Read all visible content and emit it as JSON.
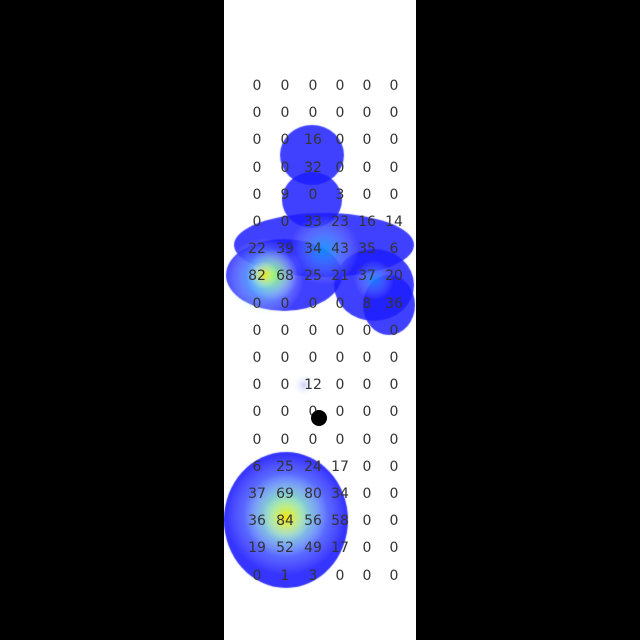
{
  "grid": {
    "rows": [
      [
        0,
        0,
        0,
        0,
        0,
        0
      ],
      [
        0,
        0,
        0,
        0,
        0,
        0
      ],
      [
        0,
        0,
        16,
        0,
        0,
        0
      ],
      [
        0,
        0,
        32,
        0,
        0,
        0
      ],
      [
        0,
        9,
        0,
        3,
        0,
        0
      ],
      [
        0,
        0,
        33,
        23,
        16,
        14
      ],
      [
        22,
        39,
        34,
        43,
        35,
        6
      ],
      [
        82,
        68,
        25,
        21,
        37,
        20
      ],
      [
        0,
        0,
        0,
        0,
        8,
        36
      ],
      [
        0,
        0,
        0,
        0,
        0,
        0
      ],
      [
        0,
        0,
        0,
        0,
        0,
        0
      ],
      [
        0,
        0,
        12,
        0,
        0,
        0
      ],
      [
        0,
        0,
        0,
        0,
        0,
        0
      ],
      [
        0,
        0,
        0,
        0,
        0,
        0
      ],
      [
        6,
        25,
        24,
        17,
        0,
        0
      ],
      [
        37,
        69,
        80,
        34,
        0,
        0
      ],
      [
        36,
        84,
        56,
        58,
        0,
        0
      ],
      [
        19,
        52,
        49,
        17,
        0,
        0
      ],
      [
        0,
        1,
        3,
        0,
        0,
        0
      ]
    ]
  },
  "heatmap": {
    "colors": [
      "#1f1fff",
      "#00c8ff",
      "#7fff40",
      "#ffe000"
    ]
  },
  "cursor": {
    "icon": "cursor-dot-icon",
    "color": "#000000"
  }
}
